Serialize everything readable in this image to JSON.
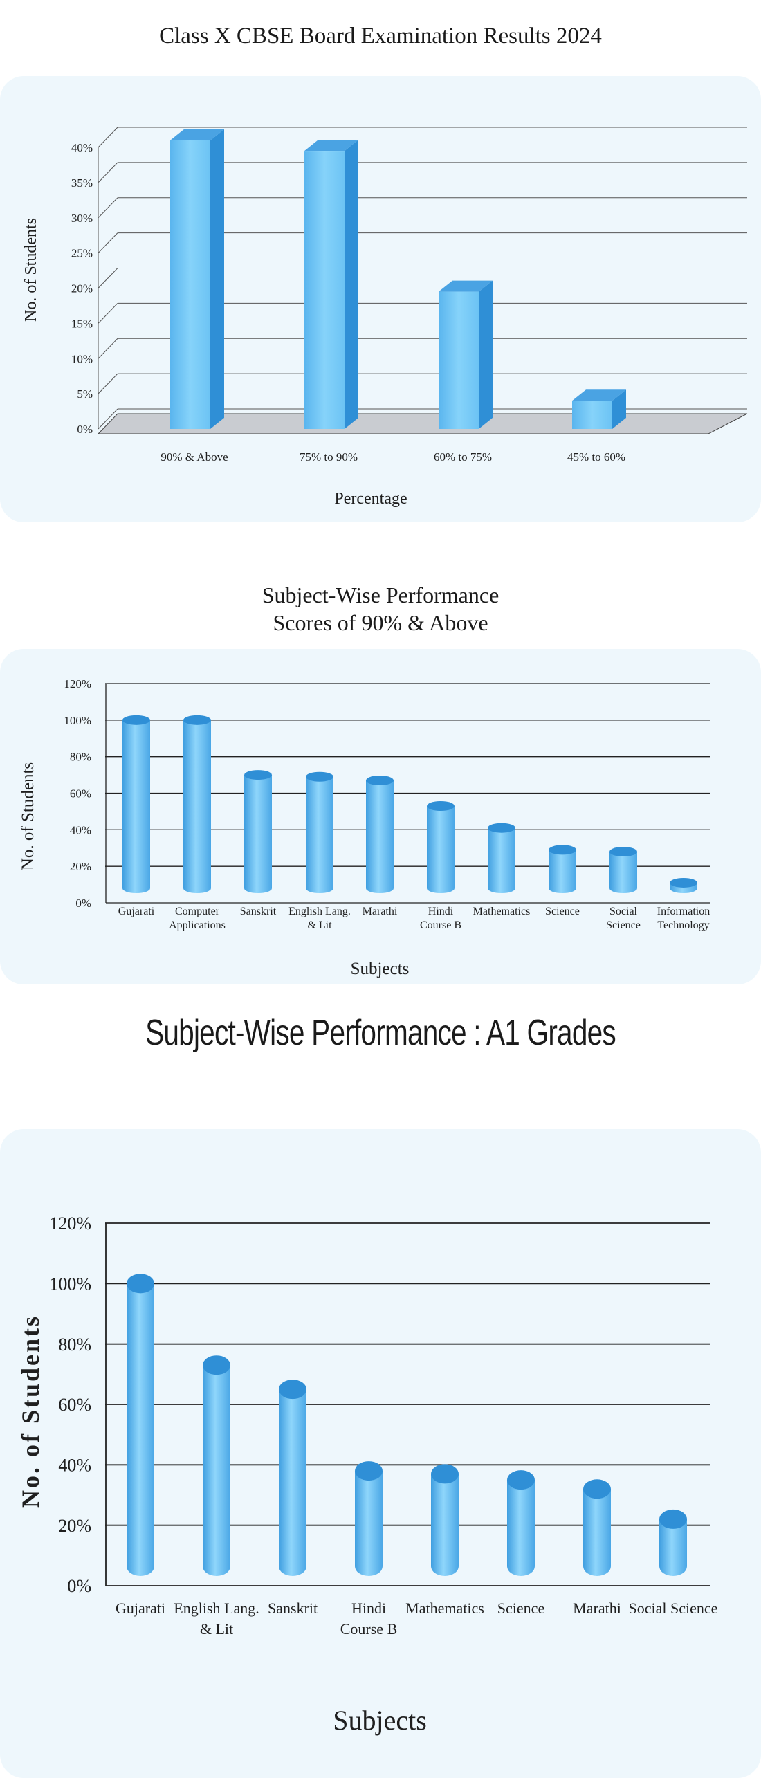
{
  "page": {
    "title": "Class X CBSE Board Examination Results 2024",
    "chart2_title_line1": "Subject-Wise Performance",
    "chart2_title_line2": "Scores of 90% & Above",
    "chart3_title": "Subject-Wise Performance : A1 Grades"
  },
  "colors": {
    "bar_front": "#74c6f2",
    "bar_side": "#2f8fd6",
    "bar_top": "#4aa3e3",
    "panel": "#eef7fc",
    "floor": "#c9ccd1"
  },
  "chart_data": [
    {
      "type": "bar",
      "title": "Class X CBSE Board Examination Results 2024",
      "xlabel": "Percentage",
      "ylabel": "No. of Students",
      "categories": [
        "90% & Above",
        "75% to 90%",
        "60% to 75%",
        "45% to 60%"
      ],
      "values": [
        41,
        39.5,
        19.5,
        4
      ],
      "ylim": [
        0,
        40
      ],
      "yticks": [
        "0%",
        "5%",
        "10%",
        "15%",
        "20%",
        "25%",
        "30%",
        "35%",
        "40%"
      ],
      "grid": true,
      "style": "3d-box"
    },
    {
      "type": "bar",
      "title": "Subject-Wise Performance Scores of 90% & Above",
      "xlabel": "Subjects",
      "ylabel": "No. of  Students",
      "categories": [
        [
          "Gujarati"
        ],
        [
          "Computer",
          "Applications"
        ],
        [
          "Sanskrit"
        ],
        [
          "English Lang.",
          "& Lit"
        ],
        [
          "Marathi"
        ],
        [
          "Hindi",
          "Course B"
        ],
        [
          "Mathematics"
        ],
        [
          "Science"
        ],
        [
          "Social",
          "Science"
        ],
        [
          "Information",
          "Technology"
        ]
      ],
      "values": [
        100,
        100,
        70,
        69,
        67,
        53,
        41,
        29,
        28,
        11
      ],
      "ylim": [
        0,
        120
      ],
      "yticks": [
        "0%",
        "20%",
        "40%",
        "60%",
        "80%",
        "100%",
        "120%"
      ],
      "grid": true,
      "style": "cylinder"
    },
    {
      "type": "bar",
      "title": "Subject-Wise Performance : A1 Grades",
      "xlabel": "Subjects",
      "ylabel": "No.  of  Students",
      "categories": [
        [
          "Gujarati"
        ],
        [
          "English Lang.",
          "& Lit"
        ],
        [
          "Sanskrit"
        ],
        [
          "Hindi",
          "Course B"
        ],
        [
          "Mathematics"
        ],
        [
          "Science"
        ],
        [
          "Marathi"
        ],
        [
          "Social Science"
        ]
      ],
      "values": [
        100,
        73,
        65,
        38,
        37,
        35,
        32,
        22
      ],
      "ylim": [
        0,
        120
      ],
      "yticks": [
        "0%",
        "20%",
        "40%",
        "60%",
        "80%",
        "100%",
        "120%"
      ],
      "grid": true,
      "style": "cylinder"
    }
  ]
}
